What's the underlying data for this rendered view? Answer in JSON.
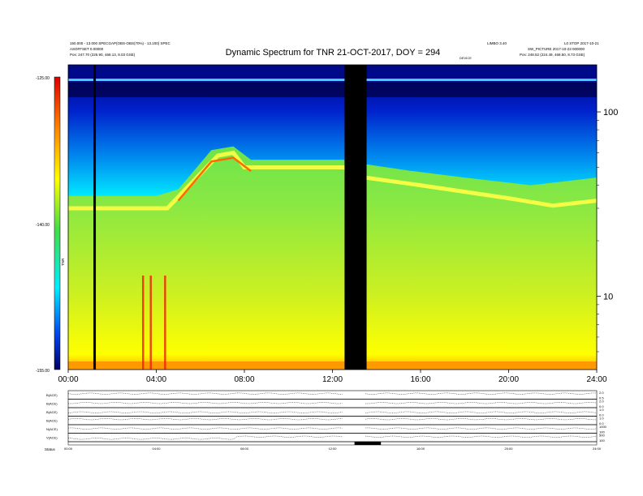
{
  "chart_data": {
    "type": "heatmap",
    "title": "Dynamic Spectrum for TNR 21-OCT-2017, DOY = 294",
    "header_left": [
      "150.000 - 13.000 SPECGAP(OBS-OBS(70%) - 13.100) SPEC",
      "ASOFFSET 0.00000",
      "Pos:   247.70 (225.90, 468.13, 8.03 GSE)"
    ],
    "header_right": [
      "LIMBO 3.40",
      "SW_PICTURE 2017-10-23 000000",
      "Pos:   248.52 (224.49, 468.50, 8.73 GSE)"
    ],
    "header_right_extra": [
      "L0 STOP 2017-10-21"
    ],
    "header_mid_small": "DEVICE",
    "xlabel": "",
    "ylabel_left": "TNR",
    "ylabel_right": "",
    "x_ticks": [
      "00:00",
      "04:00",
      "08:00",
      "12:00",
      "16:00",
      "20:00",
      "24:00"
    ],
    "x_range_hours": [
      0,
      24
    ],
    "y_ticks_right": [
      {
        "label": "100",
        "value": 100
      },
      {
        "label": "10",
        "value": 10
      }
    ],
    "y_range_khz": [
      4,
      180
    ],
    "y_scale": "log",
    "colorbar": {
      "ticks": [
        "-125.00",
        "-140.00",
        "-155.00"
      ],
      "range": [
        -155,
        -125
      ]
    },
    "data_gaps_hours": [
      [
        12.55,
        13.55
      ]
    ],
    "vertical_marker_hours": [
      1.2
    ],
    "bands": [
      {
        "name": "upper",
        "lower_khz_by_hour": [
          [
            0,
            35
          ],
          [
            4,
            35
          ],
          [
            5,
            38
          ],
          [
            6.5,
            62
          ],
          [
            7.5,
            65
          ],
          [
            8.3,
            55
          ],
          [
            11,
            55
          ],
          [
            12.5,
            55
          ],
          [
            13.5,
            52
          ],
          [
            15.5,
            48
          ],
          [
            18,
            44
          ],
          [
            21,
            40
          ],
          [
            24,
            44
          ]
        ]
      },
      {
        "name": "lower",
        "upper_khz_by_hour": [
          [
            0,
            30
          ],
          [
            4.5,
            30
          ],
          [
            5.5,
            40
          ],
          [
            6.8,
            58
          ],
          [
            7.5,
            60
          ],
          [
            8,
            50
          ],
          [
            12.5,
            50
          ],
          [
            13.5,
            44
          ],
          [
            16,
            40
          ],
          [
            20,
            34
          ],
          [
            22,
            31
          ],
          [
            24,
            33
          ]
        ]
      }
    ],
    "panels": [
      {
        "label": "B(ACE)",
        "right_top": "2.0",
        "right_bottom": "0.5"
      },
      {
        "label": "B(ACE)",
        "right_top": "2.0",
        "right_bottom": "0.0"
      },
      {
        "label": "B(ACE)",
        "right_top": "1.0",
        "right_bottom": "0.0"
      },
      {
        "label": "B(ACE)",
        "right_top": "1.0",
        "right_bottom": "0.0"
      },
      {
        "label": "N(ACE)",
        "right_top": "1000",
        "right_bottom": "100"
      },
      {
        "label": "V(ACE)",
        "right_top": "500",
        "right_bottom": "100"
      }
    ],
    "bottom_ticks": [
      "00:00",
      "04:00",
      "08:00",
      "12:00",
      "16:00",
      "20:00",
      "24:00"
    ],
    "bottom_label": "Status"
  }
}
